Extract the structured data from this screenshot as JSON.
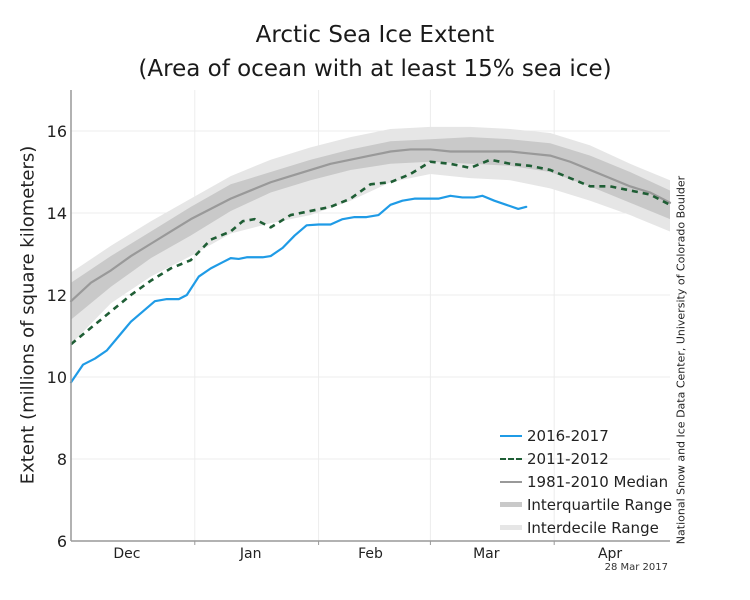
{
  "title_line1": "Arctic Sea Ice Extent",
  "title_line2": "(Area of ocean with at least 15% sea ice)",
  "credit": "National Snow and Ice Data Center, University of Colorado Boulder",
  "date_stamp": "28 Mar 2017",
  "colors": {
    "current": "#1f9be6",
    "compare": "#1f5e35",
    "median": "#999999",
    "interquartile": "#c9c9c9",
    "interdecile": "#e6e6e6",
    "grid": "#ececec",
    "axis": "#999999"
  },
  "chart_data": {
    "type": "line",
    "title": "Arctic Sea Ice Extent (Area of ocean with at least 15% sea ice)",
    "xlabel": "",
    "ylabel": "Extent (millions of square kilometers)",
    "ylim": [
      6,
      17
    ],
    "yticks": [
      6,
      8,
      10,
      12,
      14,
      16
    ],
    "x_units": "day index from Dec 1",
    "xlim": [
      0,
      150
    ],
    "xticks_days": [
      31,
      62,
      90,
      121
    ],
    "month_labels": [
      {
        "label": "Dec",
        "center_day": 14
      },
      {
        "label": "Jan",
        "center_day": 45
      },
      {
        "label": "Feb",
        "center_day": 75
      },
      {
        "label": "Mar",
        "center_day": 104
      },
      {
        "label": "Apr",
        "center_day": 135
      }
    ],
    "grid": true,
    "legend_position": "bottom-right",
    "legend": [
      "2016-2017",
      "2011-2012",
      "1981-2010 Median",
      "Interquartile Range",
      "Interdecile Range"
    ],
    "series": [
      {
        "name": "2016-2017",
        "style": "solid",
        "x": [
          0,
          3,
          6,
          9,
          12,
          15,
          18,
          21,
          24,
          27,
          29,
          32,
          35,
          38,
          40,
          42,
          44,
          48,
          50,
          53,
          56,
          59,
          62,
          65,
          68,
          71,
          74,
          77,
          80,
          83,
          86,
          89,
          92,
          95,
          98,
          101,
          103,
          106,
          109,
          112,
          114
        ],
        "values": [
          9.87,
          10.3,
          10.45,
          10.65,
          11.0,
          11.35,
          11.6,
          11.85,
          11.9,
          11.9,
          12.0,
          12.45,
          12.65,
          12.8,
          12.9,
          12.88,
          12.92,
          12.92,
          12.95,
          13.15,
          13.45,
          13.7,
          13.72,
          13.72,
          13.85,
          13.9,
          13.9,
          13.95,
          14.2,
          14.3,
          14.35,
          14.35,
          14.35,
          14.42,
          14.38,
          14.38,
          14.42,
          14.3,
          14.2,
          14.1,
          14.15
        ]
      },
      {
        "name": "2011-2012",
        "style": "dashed",
        "x": [
          0,
          5,
          10,
          15,
          20,
          25,
          30,
          35,
          40,
          43,
          46,
          50,
          55,
          60,
          65,
          70,
          75,
          80,
          85,
          90,
          95,
          100,
          105,
          110,
          115,
          120,
          125,
          130,
          135,
          140,
          145,
          150
        ],
        "values": [
          10.8,
          11.2,
          11.6,
          12.0,
          12.35,
          12.65,
          12.85,
          13.35,
          13.55,
          13.8,
          13.85,
          13.65,
          13.95,
          14.05,
          14.15,
          14.35,
          14.7,
          14.75,
          14.95,
          15.25,
          15.2,
          15.1,
          15.3,
          15.2,
          15.15,
          15.05,
          14.85,
          14.65,
          14.65,
          14.55,
          14.45,
          14.2
        ]
      },
      {
        "name": "1981-2010 Median",
        "style": "solid",
        "x": [
          0,
          5,
          10,
          15,
          20,
          25,
          30,
          35,
          40,
          45,
          50,
          55,
          60,
          65,
          70,
          75,
          80,
          85,
          90,
          95,
          100,
          105,
          110,
          115,
          120,
          125,
          130,
          135,
          140,
          145,
          150
        ],
        "values": [
          11.85,
          12.3,
          12.6,
          12.95,
          13.25,
          13.55,
          13.85,
          14.1,
          14.35,
          14.55,
          14.75,
          14.9,
          15.05,
          15.2,
          15.3,
          15.4,
          15.5,
          15.55,
          15.55,
          15.5,
          15.5,
          15.5,
          15.5,
          15.45,
          15.4,
          15.25,
          15.05,
          14.85,
          14.65,
          14.5,
          14.25
        ]
      }
    ],
    "bands": [
      {
        "name": "Interquartile Range",
        "x": [
          0,
          10,
          20,
          30,
          40,
          50,
          60,
          70,
          80,
          90,
          100,
          110,
          120,
          130,
          140,
          150
        ],
        "lower": [
          11.4,
          12.2,
          12.9,
          13.45,
          14.05,
          14.5,
          14.8,
          15.05,
          15.2,
          15.25,
          15.2,
          15.15,
          15.0,
          14.65,
          14.25,
          13.85
        ],
        "upper": [
          12.3,
          12.95,
          13.55,
          14.15,
          14.7,
          15.0,
          15.3,
          15.55,
          15.75,
          15.8,
          15.85,
          15.8,
          15.7,
          15.4,
          15.0,
          14.55
        ]
      },
      {
        "name": "Interdecile Range",
        "x": [
          0,
          10,
          20,
          30,
          40,
          50,
          60,
          70,
          80,
          90,
          100,
          110,
          120,
          130,
          140,
          150
        ],
        "lower": [
          10.8,
          11.8,
          12.45,
          12.95,
          13.5,
          13.75,
          13.95,
          14.3,
          14.75,
          14.95,
          14.85,
          14.8,
          14.6,
          14.3,
          13.95,
          13.55
        ],
        "upper": [
          12.55,
          13.2,
          13.8,
          14.35,
          14.9,
          15.3,
          15.6,
          15.85,
          16.05,
          16.1,
          16.1,
          16.05,
          15.95,
          15.65,
          15.2,
          14.8
        ]
      }
    ]
  }
}
